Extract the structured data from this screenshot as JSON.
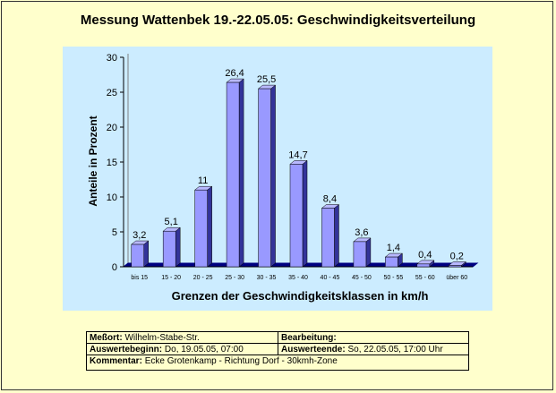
{
  "chart_data": {
    "type": "bar",
    "title": "Messung Wattenbek 19.-22.05.05: Geschwindigkeitsverteilung",
    "xlabel": "Grenzen der Geschwindigkeitsklassen in km/h",
    "ylabel": "Anteile in Prozent",
    "ylim": [
      0,
      30
    ],
    "yticks": [
      "0",
      "5",
      "10",
      "15",
      "20",
      "25",
      "30"
    ],
    "categories": [
      "bis 15",
      "15 - 20",
      "20 - 25",
      "25 - 30",
      "30 - 35",
      "35 - 40",
      "40 - 45",
      "45 - 50",
      "50 - 55",
      "55 - 60",
      "über 60"
    ],
    "values": [
      3.2,
      5.1,
      11,
      26.4,
      25.5,
      14.7,
      8.4,
      3.6,
      1.4,
      0.4,
      0.2
    ],
    "value_labels": [
      "3,2",
      "5,1",
      "11",
      "26,4",
      "25,5",
      "14,7",
      "8,4",
      "3,6",
      "1,4",
      "0,4",
      "0,2"
    ],
    "grid": false,
    "colors": {
      "bar_front": "#9999ff",
      "bar_side": "#333399",
      "bar_top": "#b8b8ff",
      "floor": "#000080",
      "plot_background": "#ccecff",
      "page_background": "#ffffcc"
    }
  },
  "info": {
    "messort_label": "Meßort:",
    "messort_value": "Wilhelm-Stabe-Str.",
    "bearbeitung_label": "Bearbeitung:",
    "bearbeitung_value": "",
    "beginn_label": "Auswertebeginn:",
    "beginn_value": "Do, 19.05.05, 07:00",
    "ende_label": "Auswerteende:",
    "ende_value": "So, 22.05.05, 17:00 Uhr",
    "kommentar_label": "Kommentar:",
    "kommentar_value": "Ecke Grotenkamp - Richtung Dorf - 30kmh-Zone"
  }
}
